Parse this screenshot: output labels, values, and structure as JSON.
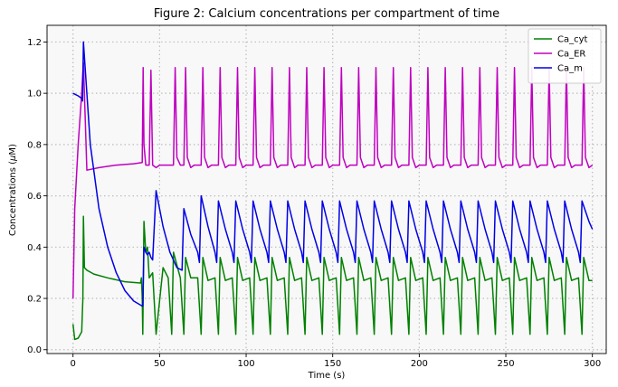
{
  "chart_data": {
    "type": "line",
    "title": "Figure 2: Calcium concentrations per compartment of time",
    "xlabel": "Time (s)",
    "ylabel_prefix": "Concentrations (",
    "ylabel_mu": "μ",
    "ylabel_suffix": "M)",
    "xlim": [
      -15,
      308
    ],
    "ylim": [
      -0.015,
      1.265
    ],
    "xticks": [
      0,
      50,
      100,
      150,
      200,
      250,
      300
    ],
    "yticks": [
      0.0,
      0.2,
      0.4,
      0.6,
      0.8,
      1.0,
      1.2
    ],
    "grid": true,
    "legend_position": "top-right",
    "background": "#f8f8f8",
    "series": [
      {
        "name": "Ca_cyt",
        "color": "#008000",
        "x": [
          0,
          1,
          3,
          5,
          5.7,
          6,
          6.6,
          8,
          12,
          20,
          30,
          39,
          39.5,
          40,
          40.3,
          41,
          42,
          43,
          44,
          46,
          48,
          52,
          55,
          57,
          58,
          62,
          64,
          65,
          68,
          72,
          74,
          75,
          78,
          82,
          84,
          85,
          88,
          92,
          94,
          95,
          98,
          102,
          104,
          105,
          108,
          112,
          114,
          115,
          118,
          122,
          124,
          125,
          128,
          132,
          134,
          135,
          138,
          142,
          144,
          145,
          148,
          152,
          154,
          155,
          158,
          162,
          164,
          165,
          168,
          172,
          174,
          175,
          178,
          182,
          184,
          185,
          188,
          192,
          194,
          195,
          198,
          202,
          204,
          205,
          208,
          212,
          214,
          215,
          218,
          222,
          224,
          225,
          228,
          232,
          234,
          235,
          238,
          242,
          244,
          245,
          248,
          252,
          254,
          255,
          258,
          262,
          264,
          265,
          268,
          272,
          274,
          275,
          278,
          282,
          284,
          285,
          288,
          292,
          294,
          295,
          298,
          300
        ],
        "y": [
          0.1,
          0.04,
          0.045,
          0.07,
          0.2,
          0.52,
          0.32,
          0.31,
          0.295,
          0.28,
          0.265,
          0.26,
          0.28,
          0.2,
          0.06,
          0.5,
          0.38,
          0.4,
          0.28,
          0.3,
          0.06,
          0.32,
          0.28,
          0.06,
          0.38,
          0.28,
          0.06,
          0.36,
          0.28,
          0.28,
          0.06,
          0.36,
          0.27,
          0.28,
          0.06,
          0.36,
          0.27,
          0.28,
          0.06,
          0.36,
          0.27,
          0.28,
          0.06,
          0.36,
          0.27,
          0.28,
          0.06,
          0.36,
          0.27,
          0.28,
          0.06,
          0.36,
          0.27,
          0.28,
          0.06,
          0.36,
          0.27,
          0.28,
          0.06,
          0.36,
          0.27,
          0.28,
          0.06,
          0.36,
          0.27,
          0.28,
          0.06,
          0.36,
          0.27,
          0.28,
          0.06,
          0.36,
          0.27,
          0.28,
          0.06,
          0.36,
          0.27,
          0.28,
          0.06,
          0.36,
          0.27,
          0.28,
          0.06,
          0.36,
          0.27,
          0.28,
          0.06,
          0.36,
          0.27,
          0.28,
          0.06,
          0.36,
          0.27,
          0.28,
          0.06,
          0.36,
          0.27,
          0.28,
          0.06,
          0.36,
          0.27,
          0.28,
          0.06,
          0.36,
          0.27,
          0.28,
          0.06,
          0.36,
          0.27,
          0.28,
          0.06,
          0.36,
          0.27,
          0.28,
          0.06,
          0.36,
          0.27,
          0.28,
          0.06,
          0.36,
          0.27,
          0.27
        ]
      },
      {
        "name": "Ca_ER",
        "color": "#bf00bf",
        "x": [
          0,
          1,
          3,
          5,
          6,
          8,
          15,
          25,
          35,
          40,
          40.5,
          41,
          42,
          44,
          45,
          46,
          48,
          50,
          55,
          58,
          59,
          60,
          62,
          64,
          65,
          66,
          68,
          70,
          74,
          75,
          76,
          78,
          80,
          84,
          85,
          86,
          88,
          90,
          94,
          95,
          96,
          98,
          100,
          104,
          105,
          106,
          108,
          110,
          114,
          115,
          116,
          118,
          120,
          124,
          125,
          126,
          128,
          130,
          134,
          135,
          136,
          138,
          140,
          144,
          145,
          146,
          148,
          150,
          154,
          155,
          156,
          158,
          160,
          164,
          165,
          166,
          168,
          170,
          174,
          175,
          176,
          178,
          180,
          184,
          185,
          186,
          188,
          190,
          194,
          195,
          196,
          198,
          200,
          204,
          205,
          206,
          208,
          210,
          214,
          215,
          216,
          218,
          220,
          224,
          225,
          226,
          228,
          230,
          234,
          235,
          236,
          238,
          240,
          244,
          245,
          246,
          248,
          250,
          254,
          255,
          256,
          258,
          260,
          264,
          265,
          266,
          268,
          270,
          274,
          275,
          276,
          278,
          280,
          284,
          285,
          286,
          288,
          290,
          294,
          295,
          296,
          298,
          300
        ],
        "y": [
          0.2,
          0.55,
          0.8,
          1.0,
          1.12,
          0.7,
          0.71,
          0.72,
          0.725,
          0.73,
          1.1,
          0.8,
          0.72,
          0.72,
          1.09,
          0.72,
          0.71,
          0.72,
          0.72,
          0.72,
          1.1,
          0.75,
          0.72,
          0.72,
          1.1,
          0.75,
          0.71,
          0.72,
          0.72,
          1.1,
          0.75,
          0.71,
          0.72,
          0.72,
          1.1,
          0.75,
          0.71,
          0.72,
          0.72,
          1.1,
          0.75,
          0.71,
          0.72,
          0.72,
          1.1,
          0.75,
          0.71,
          0.72,
          0.72,
          1.1,
          0.75,
          0.71,
          0.72,
          0.72,
          1.1,
          0.75,
          0.71,
          0.72,
          0.72,
          1.1,
          0.75,
          0.71,
          0.72,
          0.72,
          1.1,
          0.75,
          0.71,
          0.72,
          0.72,
          1.1,
          0.75,
          0.71,
          0.72,
          0.72,
          1.1,
          0.75,
          0.71,
          0.72,
          0.72,
          1.1,
          0.75,
          0.71,
          0.72,
          0.72,
          1.1,
          0.75,
          0.71,
          0.72,
          0.72,
          1.1,
          0.75,
          0.71,
          0.72,
          0.72,
          1.1,
          0.75,
          0.71,
          0.72,
          0.72,
          1.1,
          0.75,
          0.71,
          0.72,
          0.72,
          1.1,
          0.75,
          0.71,
          0.72,
          0.72,
          1.1,
          0.75,
          0.71,
          0.72,
          0.72,
          1.1,
          0.75,
          0.71,
          0.72,
          0.72,
          1.1,
          0.75,
          0.71,
          0.72,
          0.72,
          1.1,
          0.75,
          0.71,
          0.72,
          0.72,
          1.1,
          0.75,
          0.71,
          0.72,
          0.72,
          1.1,
          0.75,
          0.71,
          0.72,
          0.72,
          1.1,
          0.75,
          0.71,
          0.72
        ]
      },
      {
        "name": "Ca_m",
        "color": "#0000e6",
        "x": [
          0,
          3,
          5,
          5.5,
          6,
          7,
          10,
          15,
          20,
          25,
          30,
          35,
          40,
          40.3,
          41,
          42,
          43,
          44,
          45,
          46,
          48,
          52,
          56,
          60,
          63,
          64,
          68,
          72,
          73,
          74,
          78,
          82,
          83,
          84,
          88,
          92,
          93,
          94,
          98,
          102,
          103,
          104,
          108,
          112,
          113,
          114,
          118,
          122,
          123,
          124,
          128,
          132,
          133,
          134,
          138,
          142,
          143,
          144,
          148,
          152,
          153,
          154,
          158,
          162,
          163,
          164,
          168,
          172,
          173,
          174,
          178,
          182,
          183,
          184,
          188,
          192,
          193,
          194,
          198,
          202,
          203,
          204,
          208,
          212,
          213,
          214,
          218,
          222,
          223,
          224,
          228,
          232,
          233,
          234,
          238,
          242,
          243,
          244,
          248,
          252,
          253,
          254,
          258,
          262,
          263,
          264,
          268,
          272,
          273,
          274,
          278,
          282,
          283,
          284,
          288,
          292,
          293,
          294,
          298,
          300
        ],
        "y": [
          1.0,
          0.99,
          0.98,
          0.97,
          1.2,
          1.1,
          0.8,
          0.55,
          0.4,
          0.3,
          0.23,
          0.19,
          0.17,
          0.17,
          0.4,
          0.38,
          0.37,
          0.38,
          0.36,
          0.35,
          0.62,
          0.48,
          0.38,
          0.32,
          0.31,
          0.55,
          0.45,
          0.38,
          0.34,
          0.6,
          0.48,
          0.38,
          0.34,
          0.58,
          0.47,
          0.38,
          0.34,
          0.58,
          0.47,
          0.38,
          0.34,
          0.58,
          0.47,
          0.38,
          0.34,
          0.58,
          0.47,
          0.38,
          0.34,
          0.58,
          0.47,
          0.38,
          0.34,
          0.58,
          0.47,
          0.38,
          0.34,
          0.58,
          0.47,
          0.38,
          0.34,
          0.58,
          0.47,
          0.38,
          0.34,
          0.58,
          0.47,
          0.38,
          0.34,
          0.58,
          0.47,
          0.38,
          0.34,
          0.58,
          0.47,
          0.38,
          0.34,
          0.58,
          0.47,
          0.38,
          0.34,
          0.58,
          0.47,
          0.38,
          0.34,
          0.58,
          0.47,
          0.38,
          0.34,
          0.58,
          0.47,
          0.38,
          0.34,
          0.58,
          0.47,
          0.38,
          0.34,
          0.58,
          0.47,
          0.38,
          0.34,
          0.58,
          0.47,
          0.38,
          0.34,
          0.58,
          0.47,
          0.38,
          0.34,
          0.58,
          0.47,
          0.38,
          0.34,
          0.58,
          0.47,
          0.38,
          0.34,
          0.58,
          0.5,
          0.47
        ]
      }
    ]
  }
}
